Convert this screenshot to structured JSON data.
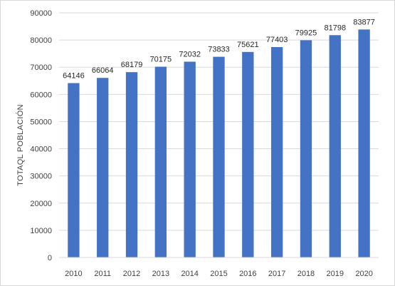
{
  "chart_data": {
    "type": "bar",
    "title": "",
    "xlabel": "",
    "ylabel": "TOTAQL POBLACIÓN",
    "categories": [
      "2010",
      "2011",
      "2012",
      "2013",
      "2014",
      "2015",
      "2016",
      "2017",
      "2018",
      "2019",
      "2020"
    ],
    "values": [
      64146,
      66064,
      68179,
      70175,
      72032,
      73833,
      75621,
      77403,
      79925,
      81798,
      83877
    ],
    "ylim": [
      0,
      90000
    ],
    "yticks": [
      0,
      10000,
      20000,
      30000,
      40000,
      50000,
      60000,
      70000,
      80000,
      90000
    ],
    "grid": true,
    "legend": "none",
    "bar_color": "#4472c4",
    "grid_color": "#d9d9d9"
  }
}
